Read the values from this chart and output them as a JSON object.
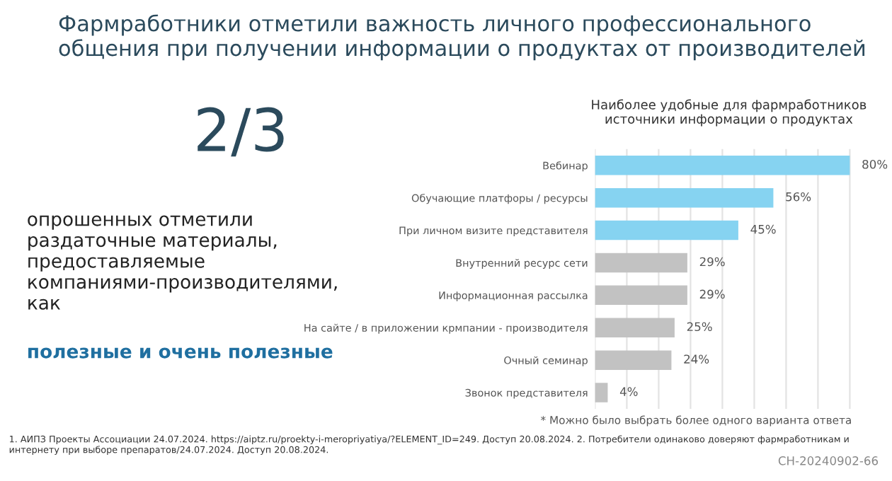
{
  "chart_data": {
    "type": "bar",
    "orientation": "horizontal",
    "title": "Фармработники отметили важность личного профессионального общения при получении информации о продуктах от производителей",
    "subtitle": "Наиболее удобные для фармработников источники информации о продуктах",
    "categories": [
      "Вебинар",
      "Обучающие платфоры / ресурсы",
      "При личном визите представителя",
      "Внутренний ресурс сети",
      "Информационная рассылка",
      "На сайте / в приложении крмпании - производителя",
      "Очный семинар",
      "Звонок представителя"
    ],
    "values": [
      80,
      56,
      45,
      29,
      29,
      25,
      24,
      4
    ],
    "colors": [
      "#86d3f1",
      "#86d3f1",
      "#86d3f1",
      "#c2c2c2",
      "#c2c2c2",
      "#c2c2c2",
      "#c2c2c2",
      "#c2c2c2"
    ],
    "value_labels": [
      "80%",
      "56%",
      "45%",
      "29%",
      "29%",
      "25%",
      "24%",
      "4%"
    ],
    "xticks": [
      {
        "value": 0,
        "label": null
      },
      {
        "value": 10,
        "label": null
      },
      {
        "value": 20,
        "label": null
      },
      {
        "value": 30,
        "label": null
      },
      {
        "value": 40,
        "label": null
      },
      {
        "value": 50,
        "label": null
      },
      {
        "value": 60,
        "label": null
      },
      {
        "value": 70,
        "label": null
      },
      {
        "value": 80,
        "label": null
      }
    ],
    "tick_labels": "y",
    "grid": "x",
    "annotations": [
      "2/3",
      "опрошенных отметили раздаточные материалы, предоставляемые компаниями-производителями, как",
      "полезные и очень полезные",
      "* Можно было выбрать более одного варианта ответа",
      "1. АИПЗ Проекты Ассоциации 24.07.2024. https://aiptz.ru/proekty-i-meropriyatiya/?ELEMENT_ID=249. Доступ 20.08.2024. 2. Потребители одинаково доверяют фармработникам и интернету при выборе препаратов/24.07.2024. Доступ 20.08.2024.",
      "CH-20240902-66"
    ]
  }
}
